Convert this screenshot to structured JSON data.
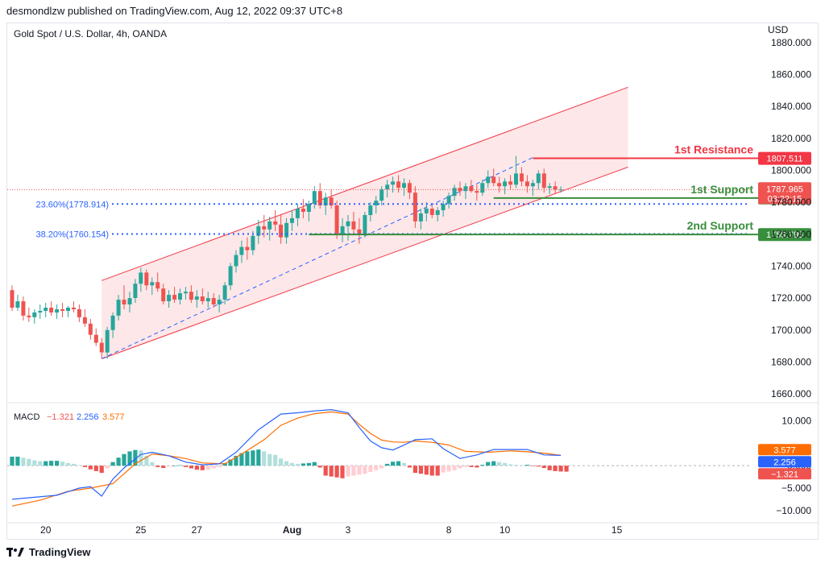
{
  "header": {
    "published": "desmondlzw published on TradingView.com, Aug 12, 2022 09:37 UTC+8"
  },
  "footer": {
    "brand": "TradingView"
  },
  "colors": {
    "up": "#26a69a",
    "down": "#ef5350",
    "channel": "#f23645",
    "fib": "#2962ff",
    "support": "#388e3c",
    "macd": "#2962ff",
    "signal": "#ff6d00",
    "histUp": "#26a69a",
    "histUpLight": "#b2dfdb",
    "histDown": "#ef5350",
    "histDownLight": "#ffcdd2"
  },
  "chart_data": {
    "type": "candlestick",
    "title": "Gold Spot / U.S. Dollar, 4h, OANDA",
    "currency": "USD",
    "ylim": [
      1655,
      1892
    ],
    "y_ticks": [
      "1880.000",
      "1860.000",
      "1840.000",
      "1820.000",
      "1800.000",
      "1780.000",
      "1760.000",
      "1740.000",
      "1720.000",
      "1700.000",
      "1680.000",
      "1660.000"
    ],
    "x_ticks": [
      {
        "label": "20",
        "i": 6
      },
      {
        "label": "25",
        "i": 23
      },
      {
        "label": "27",
        "i": 33
      },
      {
        "label": "Aug",
        "i": 50,
        "bold": true
      },
      {
        "label": "3",
        "i": 60
      },
      {
        "label": "8",
        "i": 78
      },
      {
        "label": "10",
        "i": 88
      },
      {
        "label": "15",
        "i": 108
      }
    ],
    "ohlc": [
      [
        1725,
        1728,
        1712,
        1714
      ],
      [
        1714,
        1722,
        1712,
        1718
      ],
      [
        1718,
        1721,
        1706,
        1709
      ],
      [
        1709,
        1714,
        1705,
        1708
      ],
      [
        1708,
        1713,
        1704,
        1711
      ],
      [
        1711,
        1716,
        1707,
        1712
      ],
      [
        1712,
        1717,
        1708,
        1714
      ],
      [
        1714,
        1718,
        1709,
        1711
      ],
      [
        1711,
        1716,
        1707,
        1713
      ],
      [
        1713,
        1717,
        1708,
        1712
      ],
      [
        1712,
        1715,
        1708,
        1714
      ],
      [
        1714,
        1718,
        1711,
        1713
      ],
      [
        1713,
        1716,
        1705,
        1708
      ],
      [
        1708,
        1713,
        1702,
        1704
      ],
      [
        1704,
        1707,
        1694,
        1697
      ],
      [
        1697,
        1701,
        1690,
        1692
      ],
      [
        1692,
        1695,
        1682,
        1686
      ],
      [
        1686,
        1702,
        1682,
        1700
      ],
      [
        1700,
        1711,
        1695,
        1709
      ],
      [
        1709,
        1722,
        1706,
        1719
      ],
      [
        1719,
        1728,
        1713,
        1716
      ],
      [
        1716,
        1724,
        1711,
        1720
      ],
      [
        1720,
        1732,
        1717,
        1729
      ],
      [
        1729,
        1739,
        1724,
        1736
      ],
      [
        1736,
        1738,
        1725,
        1728
      ],
      [
        1728,
        1733,
        1722,
        1730
      ],
      [
        1730,
        1736,
        1724,
        1726
      ],
      [
        1726,
        1729,
        1716,
        1718
      ],
      [
        1718,
        1725,
        1714,
        1722
      ],
      [
        1722,
        1727,
        1717,
        1719
      ],
      [
        1719,
        1726,
        1716,
        1723
      ],
      [
        1723,
        1727,
        1719,
        1724
      ],
      [
        1724,
        1728,
        1717,
        1719
      ],
      [
        1719,
        1725,
        1714,
        1721
      ],
      [
        1721,
        1726,
        1716,
        1718
      ],
      [
        1718,
        1724,
        1714,
        1720
      ],
      [
        1720,
        1723,
        1714,
        1716
      ],
      [
        1716,
        1722,
        1711,
        1719
      ],
      [
        1719,
        1730,
        1716,
        1728
      ],
      [
        1728,
        1742,
        1725,
        1740
      ],
      [
        1740,
        1750,
        1736,
        1747
      ],
      [
        1747,
        1756,
        1742,
        1752
      ],
      [
        1752,
        1758,
        1744,
        1750
      ],
      [
        1750,
        1762,
        1747,
        1759
      ],
      [
        1759,
        1769,
        1754,
        1765
      ],
      [
        1765,
        1772,
        1758,
        1763
      ],
      [
        1763,
        1771,
        1756,
        1768
      ],
      [
        1768,
        1775,
        1762,
        1766
      ],
      [
        1766,
        1772,
        1754,
        1758
      ],
      [
        1758,
        1770,
        1754,
        1767
      ],
      [
        1767,
        1775,
        1762,
        1770
      ],
      [
        1770,
        1779,
        1765,
        1776
      ],
      [
        1776,
        1782,
        1770,
        1774
      ],
      [
        1774,
        1781,
        1768,
        1779
      ],
      [
        1779,
        1790,
        1776,
        1787
      ],
      [
        1787,
        1792,
        1776,
        1778
      ],
      [
        1778,
        1786,
        1772,
        1783
      ],
      [
        1783,
        1788,
        1776,
        1778
      ],
      [
        1778,
        1781,
        1757,
        1760
      ],
      [
        1760,
        1770,
        1755,
        1765
      ],
      [
        1765,
        1772,
        1756,
        1768
      ],
      [
        1768,
        1774,
        1760,
        1763
      ],
      [
        1763,
        1770,
        1754,
        1760
      ],
      [
        1760,
        1774,
        1758,
        1772
      ],
      [
        1772,
        1780,
        1768,
        1778
      ],
      [
        1778,
        1784,
        1773,
        1781
      ],
      [
        1781,
        1790,
        1778,
        1788
      ],
      [
        1788,
        1794,
        1783,
        1791
      ],
      [
        1791,
        1796,
        1786,
        1793
      ],
      [
        1793,
        1797,
        1786,
        1789
      ],
      [
        1789,
        1795,
        1784,
        1792
      ],
      [
        1792,
        1794,
        1782,
        1786
      ],
      [
        1786,
        1790,
        1764,
        1768
      ],
      [
        1768,
        1776,
        1763,
        1773
      ],
      [
        1773,
        1780,
        1768,
        1776
      ],
      [
        1776,
        1778,
        1770,
        1772
      ],
      [
        1772,
        1777,
        1768,
        1775
      ],
      [
        1775,
        1781,
        1771,
        1779
      ],
      [
        1779,
        1786,
        1776,
        1784
      ],
      [
        1784,
        1791,
        1781,
        1789
      ],
      [
        1789,
        1793,
        1784,
        1787
      ],
      [
        1787,
        1792,
        1782,
        1790
      ],
      [
        1790,
        1794,
        1786,
        1787
      ],
      [
        1787,
        1791,
        1781,
        1786
      ],
      [
        1786,
        1794,
        1784,
        1792
      ],
      [
        1792,
        1800,
        1789,
        1796
      ],
      [
        1796,
        1801,
        1790,
        1792
      ],
      [
        1792,
        1796,
        1786,
        1790
      ],
      [
        1790,
        1795,
        1785,
        1793
      ],
      [
        1793,
        1797,
        1788,
        1791
      ],
      [
        1791,
        1809,
        1789,
        1798
      ],
      [
        1798,
        1802,
        1790,
        1793
      ],
      [
        1793,
        1797,
        1786,
        1790
      ],
      [
        1790,
        1794,
        1784,
        1792
      ],
      [
        1792,
        1800,
        1788,
        1798
      ],
      [
        1798,
        1801,
        1786,
        1789
      ],
      [
        1789,
        1792,
        1785,
        1790
      ],
      [
        1790,
        1793,
        1785,
        1788
      ],
      [
        1788,
        1790,
        1786,
        1788
      ]
    ],
    "channel": {
      "upper": [
        [
          16,
          1731
        ],
        [
          110,
          1852
        ]
      ],
      "lower": [
        [
          16,
          1682
        ],
        [
          110,
          1802
        ]
      ],
      "mid": [
        [
          16,
          1682
        ],
        [
          93,
          1808
        ]
      ]
    },
    "fib_levels": [
      {
        "label": "23.60%(1778.914)",
        "value": 1778.914
      },
      {
        "label": "38.20%(1760.154)",
        "value": 1760.154
      }
    ],
    "levels": [
      {
        "name": "1st Resistance",
        "value": 1807.511,
        "label": "1807.511",
        "color": "#f23645",
        "from": 93
      },
      {
        "name": "1st Support",
        "value": 1782.66,
        "label": "1782.660",
        "color": "#388e3c",
        "from": 86
      },
      {
        "name": "2nd Support",
        "value": 1759.795,
        "label": "1759.795",
        "color": "#388e3c",
        "from": 53
      }
    ],
    "current_price": {
      "value": 1787.965,
      "label": "1787.965",
      "countdown": "03:22:15"
    },
    "macd": {
      "title": "MACD",
      "macd_value": "−1.321",
      "signal_value": "2.256",
      "hist_value": "3.577",
      "ylim": [
        -12,
        13.5
      ],
      "y_ticks": [
        "10.000",
        "0.000",
        "−5.000",
        "−10.000"
      ],
      "tags": [
        {
          "value": 3.577,
          "label": "3.577",
          "color": "#ff6d00"
        },
        {
          "value": 2.256,
          "label": "2.256",
          "color": "#2962ff"
        },
        {
          "value": -1.321,
          "label": "−1.321",
          "color": "#ef5350"
        }
      ],
      "macd_line": [
        [
          0,
          -7.5
        ],
        [
          8,
          -6.6
        ],
        [
          12,
          -5
        ],
        [
          14,
          -4.7
        ],
        [
          16,
          -6.8
        ],
        [
          18,
          -3
        ],
        [
          20,
          -0.5
        ],
        [
          23,
          2.5
        ],
        [
          25,
          3
        ],
        [
          28,
          2.2
        ],
        [
          31,
          0.8
        ],
        [
          34,
          0.2
        ],
        [
          37,
          0.4
        ],
        [
          40,
          3
        ],
        [
          44,
          8
        ],
        [
          48,
          11.5
        ],
        [
          51,
          11.8
        ],
        [
          54,
          12.2
        ],
        [
          57,
          12.5
        ],
        [
          60,
          11.8
        ],
        [
          62,
          8.5
        ],
        [
          64,
          5.5
        ],
        [
          66,
          4
        ],
        [
          68,
          3.5
        ],
        [
          70,
          4.6
        ],
        [
          72,
          5.8
        ],
        [
          75,
          6
        ],
        [
          77,
          3.8
        ],
        [
          80,
          1.6
        ],
        [
          83,
          2.4
        ],
        [
          86,
          3.6
        ],
        [
          89,
          3.6
        ],
        [
          92,
          3.6
        ],
        [
          95,
          2.4
        ],
        [
          98,
          2.3
        ]
      ],
      "signal_line": [
        [
          0,
          -9
        ],
        [
          5,
          -7.7
        ],
        [
          10,
          -5.7
        ],
        [
          14,
          -5
        ],
        [
          18,
          -4
        ],
        [
          22,
          0.4
        ],
        [
          25,
          2.6
        ],
        [
          28,
          2.2
        ],
        [
          31,
          1.6
        ],
        [
          34,
          0.6
        ],
        [
          38,
          0.4
        ],
        [
          41,
          2.6
        ],
        [
          45,
          5.8
        ],
        [
          48,
          9
        ],
        [
          51,
          10.6
        ],
        [
          54,
          11.6
        ],
        [
          57,
          12
        ],
        [
          60,
          11.5
        ],
        [
          62,
          9.2
        ],
        [
          64,
          7.2
        ],
        [
          66,
          5.7
        ],
        [
          68,
          5.3
        ],
        [
          70,
          5.2
        ],
        [
          72,
          5.5
        ],
        [
          75,
          5.2
        ],
        [
          78,
          4.6
        ],
        [
          81,
          3.2
        ],
        [
          85,
          3
        ],
        [
          89,
          3.3
        ],
        [
          92,
          3.1
        ],
        [
          95,
          2.8
        ],
        [
          98,
          2.3
        ]
      ],
      "histogram": [
        2,
        2,
        1.8,
        1.5,
        1.2,
        1,
        1,
        1.1,
        1.1,
        0.9,
        0.6,
        0.4,
        0.1,
        -0.3,
        -0.8,
        -1.2,
        -1.6,
        -0.6,
        0.8,
        1.8,
        2.6,
        3.2,
        3.5,
        3.4,
        2.2,
        0.8,
        -0.3,
        -0.5,
        -0.2,
        0,
        0.1,
        -0.3,
        -0.6,
        -0.9,
        -1,
        -0.9,
        -0.6,
        -0.3,
        0.6,
        1.4,
        2.2,
        2.8,
        3.2,
        3.4,
        3.6,
        3.2,
        2.6,
        2.4,
        1.6,
        1,
        0.6,
        0.4,
        0.5,
        0.6,
        0.8,
        -0.4,
        -2.2,
        -2.4,
        -2.6,
        -2.8,
        -2.4,
        -2.2,
        -2,
        -1.8,
        -1.4,
        -1,
        -0.6,
        0.4,
        0.9,
        1,
        0.6,
        -0.4,
        -1.6,
        -1.8,
        -2,
        -2.2,
        -2.2,
        -1.5,
        -1.3,
        -1,
        -0.6,
        -0.3,
        -0.3,
        -0.4,
        0.2,
        0.8,
        1,
        0.8,
        0.6,
        0.3,
        0.2,
        0.1,
        0.2,
        -0.1,
        -0.2,
        -0.5,
        -1,
        -1.2,
        -1.3,
        -1.32
      ]
    }
  }
}
